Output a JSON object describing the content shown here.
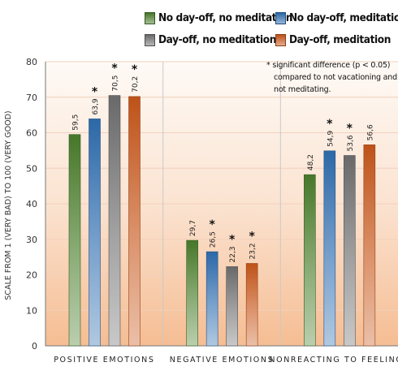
{
  "chart_data": {
    "type": "bar",
    "ylabel": "SCALE FROM 1 (VERY BAD) TO 100 (VERY GOOD)",
    "xlabel": "",
    "ylim": [
      0,
      80
    ],
    "yticks": [
      0,
      10,
      20,
      30,
      40,
      50,
      60,
      70,
      80
    ],
    "ytick_labels": [
      "0",
      "10",
      "20",
      "30",
      "40",
      "50",
      "60",
      "70",
      "80"
    ],
    "grid": true,
    "legend_position": "top-right",
    "categories": [
      "POSITIVE EMOTIONS",
      "NEGATIVE EMOTIONS",
      "NONREACTING TO FEELINGS"
    ],
    "series": [
      {
        "name": "No day-off, no meditation",
        "color": "#4a7d2b",
        "values": [
          59.5,
          29.7,
          48.2
        ],
        "value_labels": [
          "59,5",
          "29,7",
          "48,2"
        ],
        "significant": [
          false,
          false,
          false
        ]
      },
      {
        "name": "No day-off, meditation",
        "color": "#2e6db0",
        "values": [
          63.9,
          26.5,
          54.9
        ],
        "value_labels": [
          "63,9",
          "26,5",
          "54,9"
        ],
        "significant": [
          true,
          true,
          true
        ]
      },
      {
        "name": "Day-off, no meditation",
        "color": "#6e6e6e",
        "values": [
          70.5,
          22.3,
          53.6
        ],
        "value_labels": [
          "70,5",
          "22,3",
          "53,6"
        ],
        "significant": [
          true,
          true,
          true
        ]
      },
      {
        "name": "Day-off, meditation",
        "color": "#c8561a",
        "values": [
          70.2,
          23.2,
          56.6
        ],
        "value_labels": [
          "70,2",
          "23,2",
          "56,6"
        ],
        "significant": [
          true,
          true,
          false
        ]
      }
    ],
    "significance_marker": "*",
    "note_lines": [
      "* significant difference (p < 0.05)",
      "compared to not vacationing and",
      "not meditating."
    ]
  }
}
